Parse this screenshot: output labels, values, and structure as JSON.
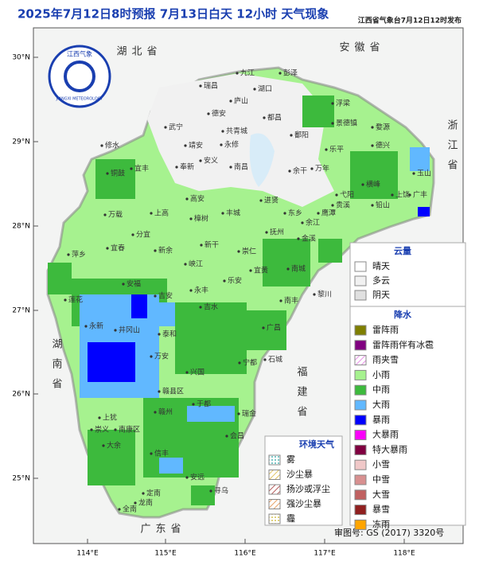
{
  "header": {
    "title": "2025年7月12日8时预报 7月13日白天 12小时  天气现象",
    "issuer": "江西省气象台7月12日12时发布"
  },
  "logo": {
    "name": "江西气象",
    "english": "JIANGXI METEOROLOGY"
  },
  "axes": {
    "lat_labels": [
      "30°N",
      "29°N",
      "28°N",
      "27°N",
      "26°N",
      "25°N"
    ],
    "lon_labels": [
      "114°E",
      "115°E",
      "116°E",
      "117°E",
      "118°E"
    ]
  },
  "provinces": [
    "湖北省",
    "安徽省",
    "浙江省",
    "湖南省",
    "福建省",
    "广东省"
  ],
  "cities": [
    "九江",
    "彭泽",
    "瑞昌",
    "湖口",
    "庐山",
    "浮梁",
    "德安",
    "都昌",
    "景德镇",
    "婺源",
    "修水",
    "武宁",
    "永修",
    "共青城",
    "鄱阳",
    "乐平",
    "德兴",
    "靖安",
    "安义",
    "奉新",
    "宜丰",
    "铜鼓",
    "南昌",
    "余干",
    "万年",
    "弋阳",
    "上饶",
    "玉山",
    "广丰",
    "铅山",
    "横峰",
    "贵溪",
    "鹰潭",
    "余江",
    "东乡",
    "进贤",
    "丰城",
    "高安",
    "上高",
    "万载",
    "宜春",
    "分宜",
    "新余",
    "樟树",
    "新干",
    "抚州",
    "金溪",
    "崇仁",
    "宜黄",
    "南城",
    "南丰",
    "黎川",
    "乐安",
    "峡江",
    "吉水",
    "永丰",
    "吉安",
    "安福",
    "萍乡",
    "莲花",
    "永新",
    "井冈山",
    "泰和",
    "万安",
    "兴国",
    "宁都",
    "广昌",
    "石城",
    "瑞金",
    "于都",
    "赣州",
    "赣县区",
    "南康区",
    "上犹",
    "崇义",
    "大余",
    "信丰",
    "会昌",
    "安远",
    "寻乌",
    "定南",
    "龙南",
    "全南"
  ],
  "cloud_legend": {
    "title": "云量",
    "items": [
      "晴天",
      "多云",
      "阴天"
    ]
  },
  "precip_legend": {
    "title": "降水",
    "items": [
      "雷阵雨",
      "雷阵雨伴有冰雹",
      "雨夹雪",
      "小雨",
      "中雨",
      "大雨",
      "暴雨",
      "大暴雨",
      "特大暴雨",
      "小雪",
      "中雪",
      "大雪",
      "暴雪",
      "冻雨"
    ]
  },
  "env_legend": {
    "title": "环境天气",
    "items": [
      "雾",
      "沙尘暴",
      "扬沙或浮尘",
      "强沙尘暴",
      "霾"
    ]
  },
  "footer": {
    "review": "审图号: GS (2017) 3320号"
  }
}
